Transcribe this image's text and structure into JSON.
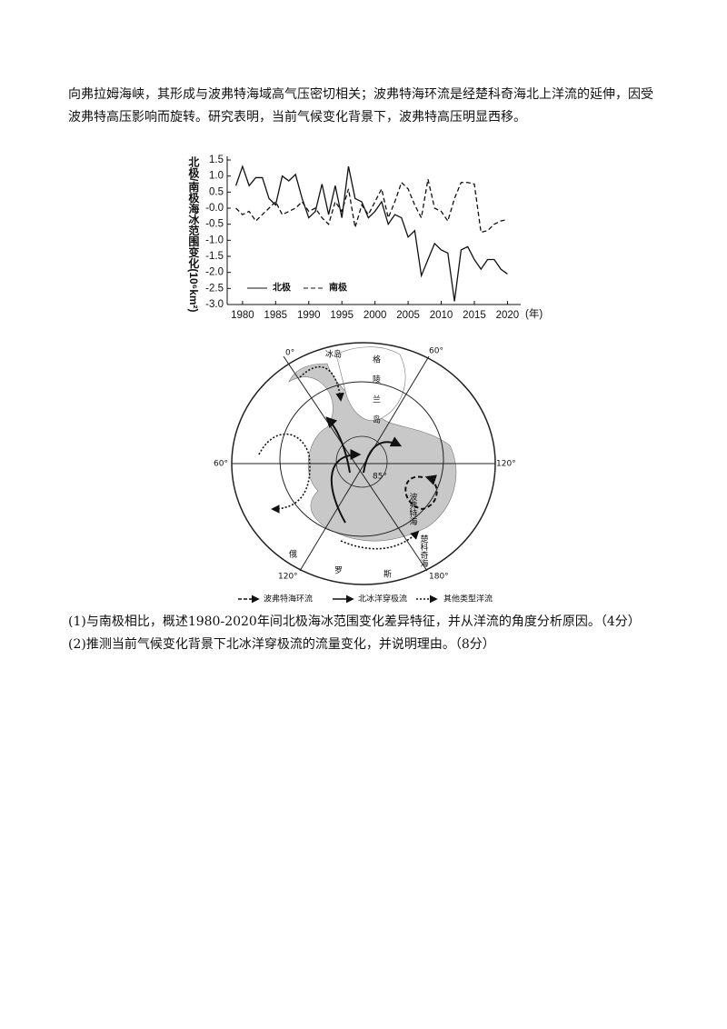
{
  "paragraph": [
    "向弗拉姆海峡，其形成与波弗特海域高气压密切相关；波弗特海环流是经楚科奇海北上洋流的延伸，因受",
    "波弗特高压影响而旋转。研究表明，当前气候变化背景下，波弗特高压明显西移。"
  ],
  "chart_data": {
    "type": "line",
    "y_label": "北极/南极海冰范围变化(10⁶km²)",
    "x_unit": "(年)",
    "x": [
      1979,
      1980,
      1981,
      1982,
      1983,
      1984,
      1985,
      1986,
      1987,
      1988,
      1989,
      1990,
      1991,
      1992,
      1993,
      1994,
      1995,
      1996,
      1997,
      1998,
      1999,
      2000,
      2001,
      2002,
      2003,
      2004,
      2005,
      2006,
      2007,
      2008,
      2009,
      2010,
      2011,
      2012,
      2013,
      2014,
      2015,
      2016,
      2017,
      2018,
      2019,
      2020
    ],
    "series": [
      {
        "name": "北极",
        "color": "#111111",
        "line_style": "solid",
        "values": [
          0.7,
          1.3,
          0.7,
          0.95,
          0.95,
          0.3,
          0.1,
          1.0,
          0.85,
          1.05,
          0.3,
          -0.3,
          -0.1,
          0.75,
          -0.2,
          0.7,
          -0.3,
          1.3,
          0.3,
          0.2,
          -0.3,
          -0.1,
          0.2,
          -0.5,
          -0.2,
          -0.3,
          -0.9,
          -0.7,
          -2.1,
          -1.6,
          -1.1,
          -1.3,
          -1.4,
          -2.9,
          -1.3,
          -1.2,
          -1.6,
          -1.9,
          -1.6,
          -1.6,
          -1.9,
          -2.05
        ]
      },
      {
        "name": "南极",
        "color": "#111111",
        "line_style": "dashed",
        "values": [
          0.0,
          -0.2,
          -0.1,
          -0.4,
          -0.2,
          0.0,
          0.2,
          -0.2,
          -0.1,
          0.0,
          0.2,
          -0.1,
          0.0,
          -0.3,
          -0.5,
          0.2,
          -0.1,
          0.6,
          -0.6,
          0.1,
          -0.2,
          0.2,
          0.6,
          -0.3,
          0.2,
          0.8,
          0.6,
          0.1,
          -0.3,
          0.9,
          0.0,
          -0.1,
          -0.4,
          0.3,
          0.8,
          0.8,
          0.75,
          -0.75,
          -0.7,
          -0.5,
          -0.4,
          -0.35
        ]
      }
    ],
    "xlim": [
      1977,
      2022
    ],
    "xticks": [
      1980,
      1985,
      1990,
      1995,
      2000,
      2005,
      2010,
      2015,
      2020
    ],
    "ylim": [
      -3.0,
      1.5
    ],
    "yticks": [
      1.5,
      {
        "value": 1.0,
        "label": "1.0"
      },
      0.5,
      {
        "value": 0,
        "label": "-0.0"
      },
      -0.5,
      {
        "value": -1.0,
        "label": "-1.0"
      },
      -1.5,
      {
        "value": -2.0,
        "label": "-2.0"
      },
      -2.5,
      {
        "value": -3.0,
        "label": "-3.0"
      }
    ]
  },
  "map": {
    "labels": [
      "0°",
      "60°",
      "60°",
      "120°",
      "120°",
      "180°",
      "格",
      "陵",
      "兰",
      "岛",
      "冰岛",
      "85°",
      "波弗特海",
      "楚科奇海",
      "俄",
      "罗",
      "斯"
    ],
    "legend": [
      "波弗特海环流",
      "北冰洋穿极流",
      "其他类型洋流"
    ]
  },
  "questions": [
    "(1)与南极相比，概述1980-2020年间北极海冰范围变化差异特征，并从洋流的角度分析原因。（4分）",
    "(2)推测当前气候变化背景下北冰洋穿极流的流量变化，并说明理由。（8分）"
  ]
}
